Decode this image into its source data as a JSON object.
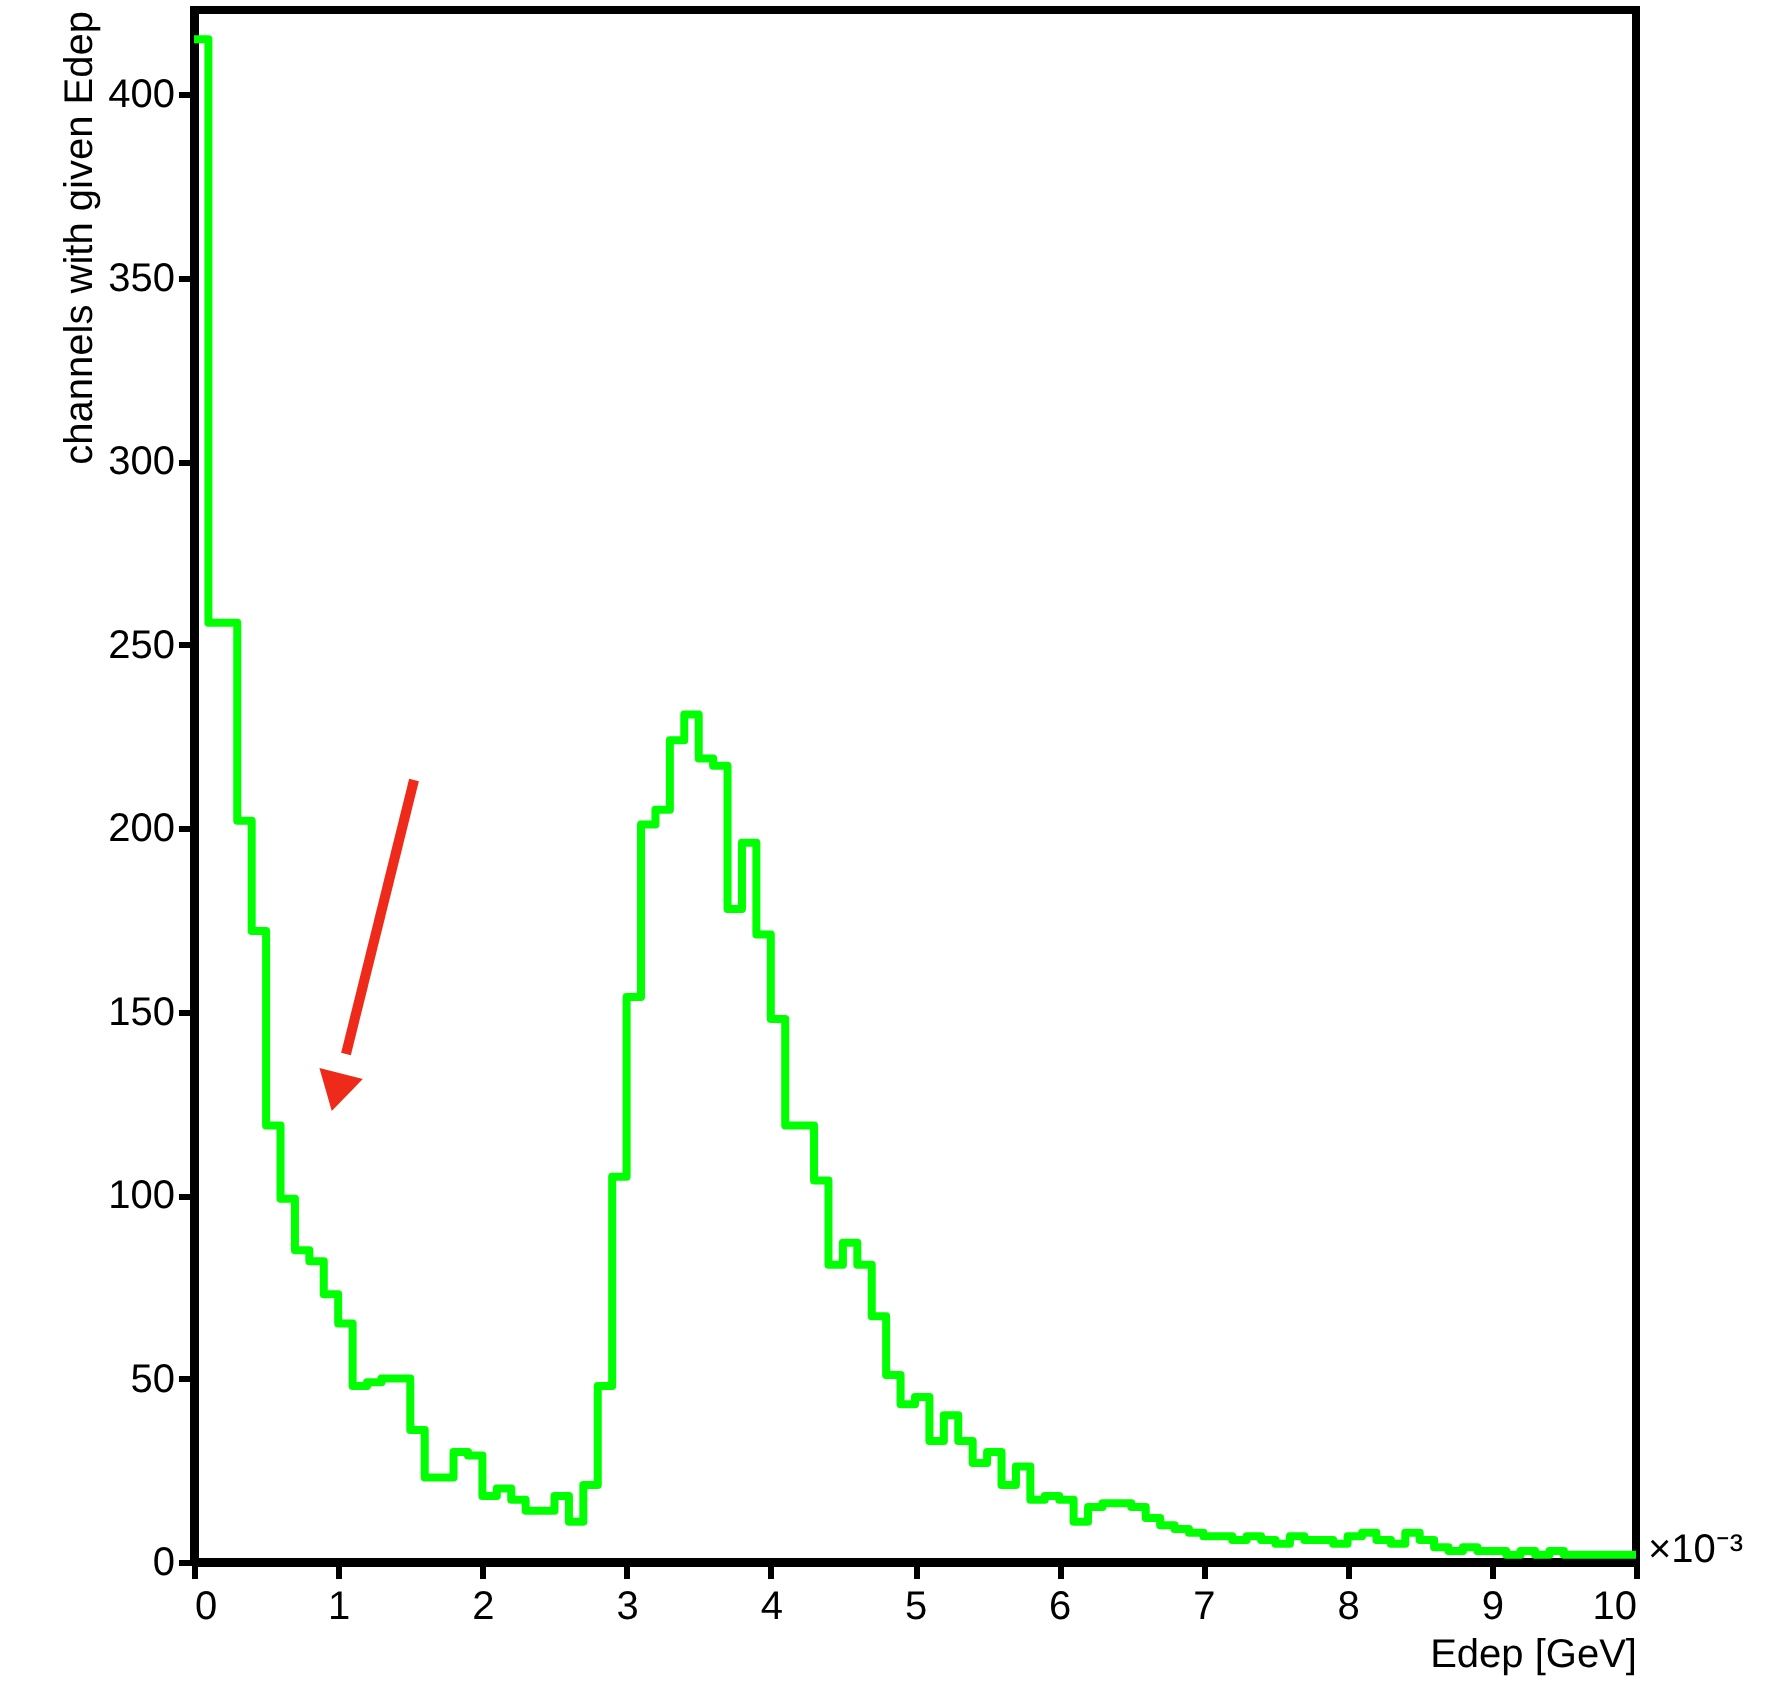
{
  "chart_data": {
    "type": "histogram",
    "xlabel": "Edep [GeV]",
    "ylabel": "channels with given Edep",
    "annotations": [
      "×10⁻³"
    ],
    "color": "#00ff00",
    "bins": [
      0,
      0.1,
      0.2,
      0.3,
      0.4,
      0.5,
      0.6,
      0.7,
      0.8,
      0.9,
      1,
      1.1,
      1.2,
      1.3,
      1.4,
      1.5,
      1.6,
      1.7,
      1.8,
      1.9,
      2,
      2.1,
      2.2,
      2.3,
      2.4,
      2.5,
      2.6,
      2.7,
      2.8,
      2.9,
      3,
      3.1,
      3.2,
      3.3,
      3.4,
      3.5,
      3.6,
      3.7,
      3.8,
      3.9,
      4,
      4.1,
      4.2,
      4.3,
      4.4,
      4.5,
      4.6,
      4.7,
      4.8,
      4.9,
      5,
      5.1,
      5.2,
      5.3,
      5.4,
      5.5,
      5.6,
      5.7,
      5.8,
      5.9,
      6,
      6.1,
      6.2,
      6.3,
      6.4,
      6.5,
      6.6,
      6.7,
      6.8,
      6.9,
      7,
      7.1,
      7.2,
      7.3,
      7.4,
      7.5,
      7.6,
      7.7,
      7.8,
      7.9,
      8,
      8.1,
      8.2,
      8.3,
      8.4,
      8.5,
      8.6,
      8.7,
      8.8,
      8.9,
      9,
      9.1,
      9.2,
      9.3,
      9.4,
      9.5,
      9.6,
      9.7,
      9.8,
      9.9,
      10
    ],
    "values": [
      415,
      256,
      256,
      202,
      172,
      119,
      99,
      85,
      82,
      73,
      65,
      48,
      49,
      50,
      50,
      36,
      23,
      23,
      30,
      29,
      18,
      20,
      17,
      14,
      14,
      18,
      11,
      21,
      48,
      105,
      154,
      201,
      205,
      224,
      231,
      219,
      217,
      178,
      196,
      171,
      148,
      119,
      119,
      104,
      81,
      87,
      81,
      67,
      51,
      43,
      45,
      33,
      40,
      33,
      27,
      30,
      21,
      26,
      17,
      18,
      17,
      11,
      15,
      16,
      16,
      15,
      12,
      10,
      9,
      8,
      7,
      7,
      6,
      7,
      6,
      5,
      7,
      6,
      6,
      5,
      7,
      8,
      6,
      5,
      8,
      6,
      4,
      3,
      4,
      3,
      3,
      2,
      3,
      2,
      3,
      2,
      2,
      2,
      2,
      2
    ],
    "xlim": [
      0,
      10
    ],
    "ylim": [
      0,
      423
    ],
    "xticks": [
      0,
      1,
      2,
      3,
      4,
      5,
      6,
      7,
      8,
      9,
      10
    ],
    "yticks": [
      0,
      50,
      100,
      150,
      200,
      250,
      300,
      350,
      400
    ],
    "grid": false
  }
}
